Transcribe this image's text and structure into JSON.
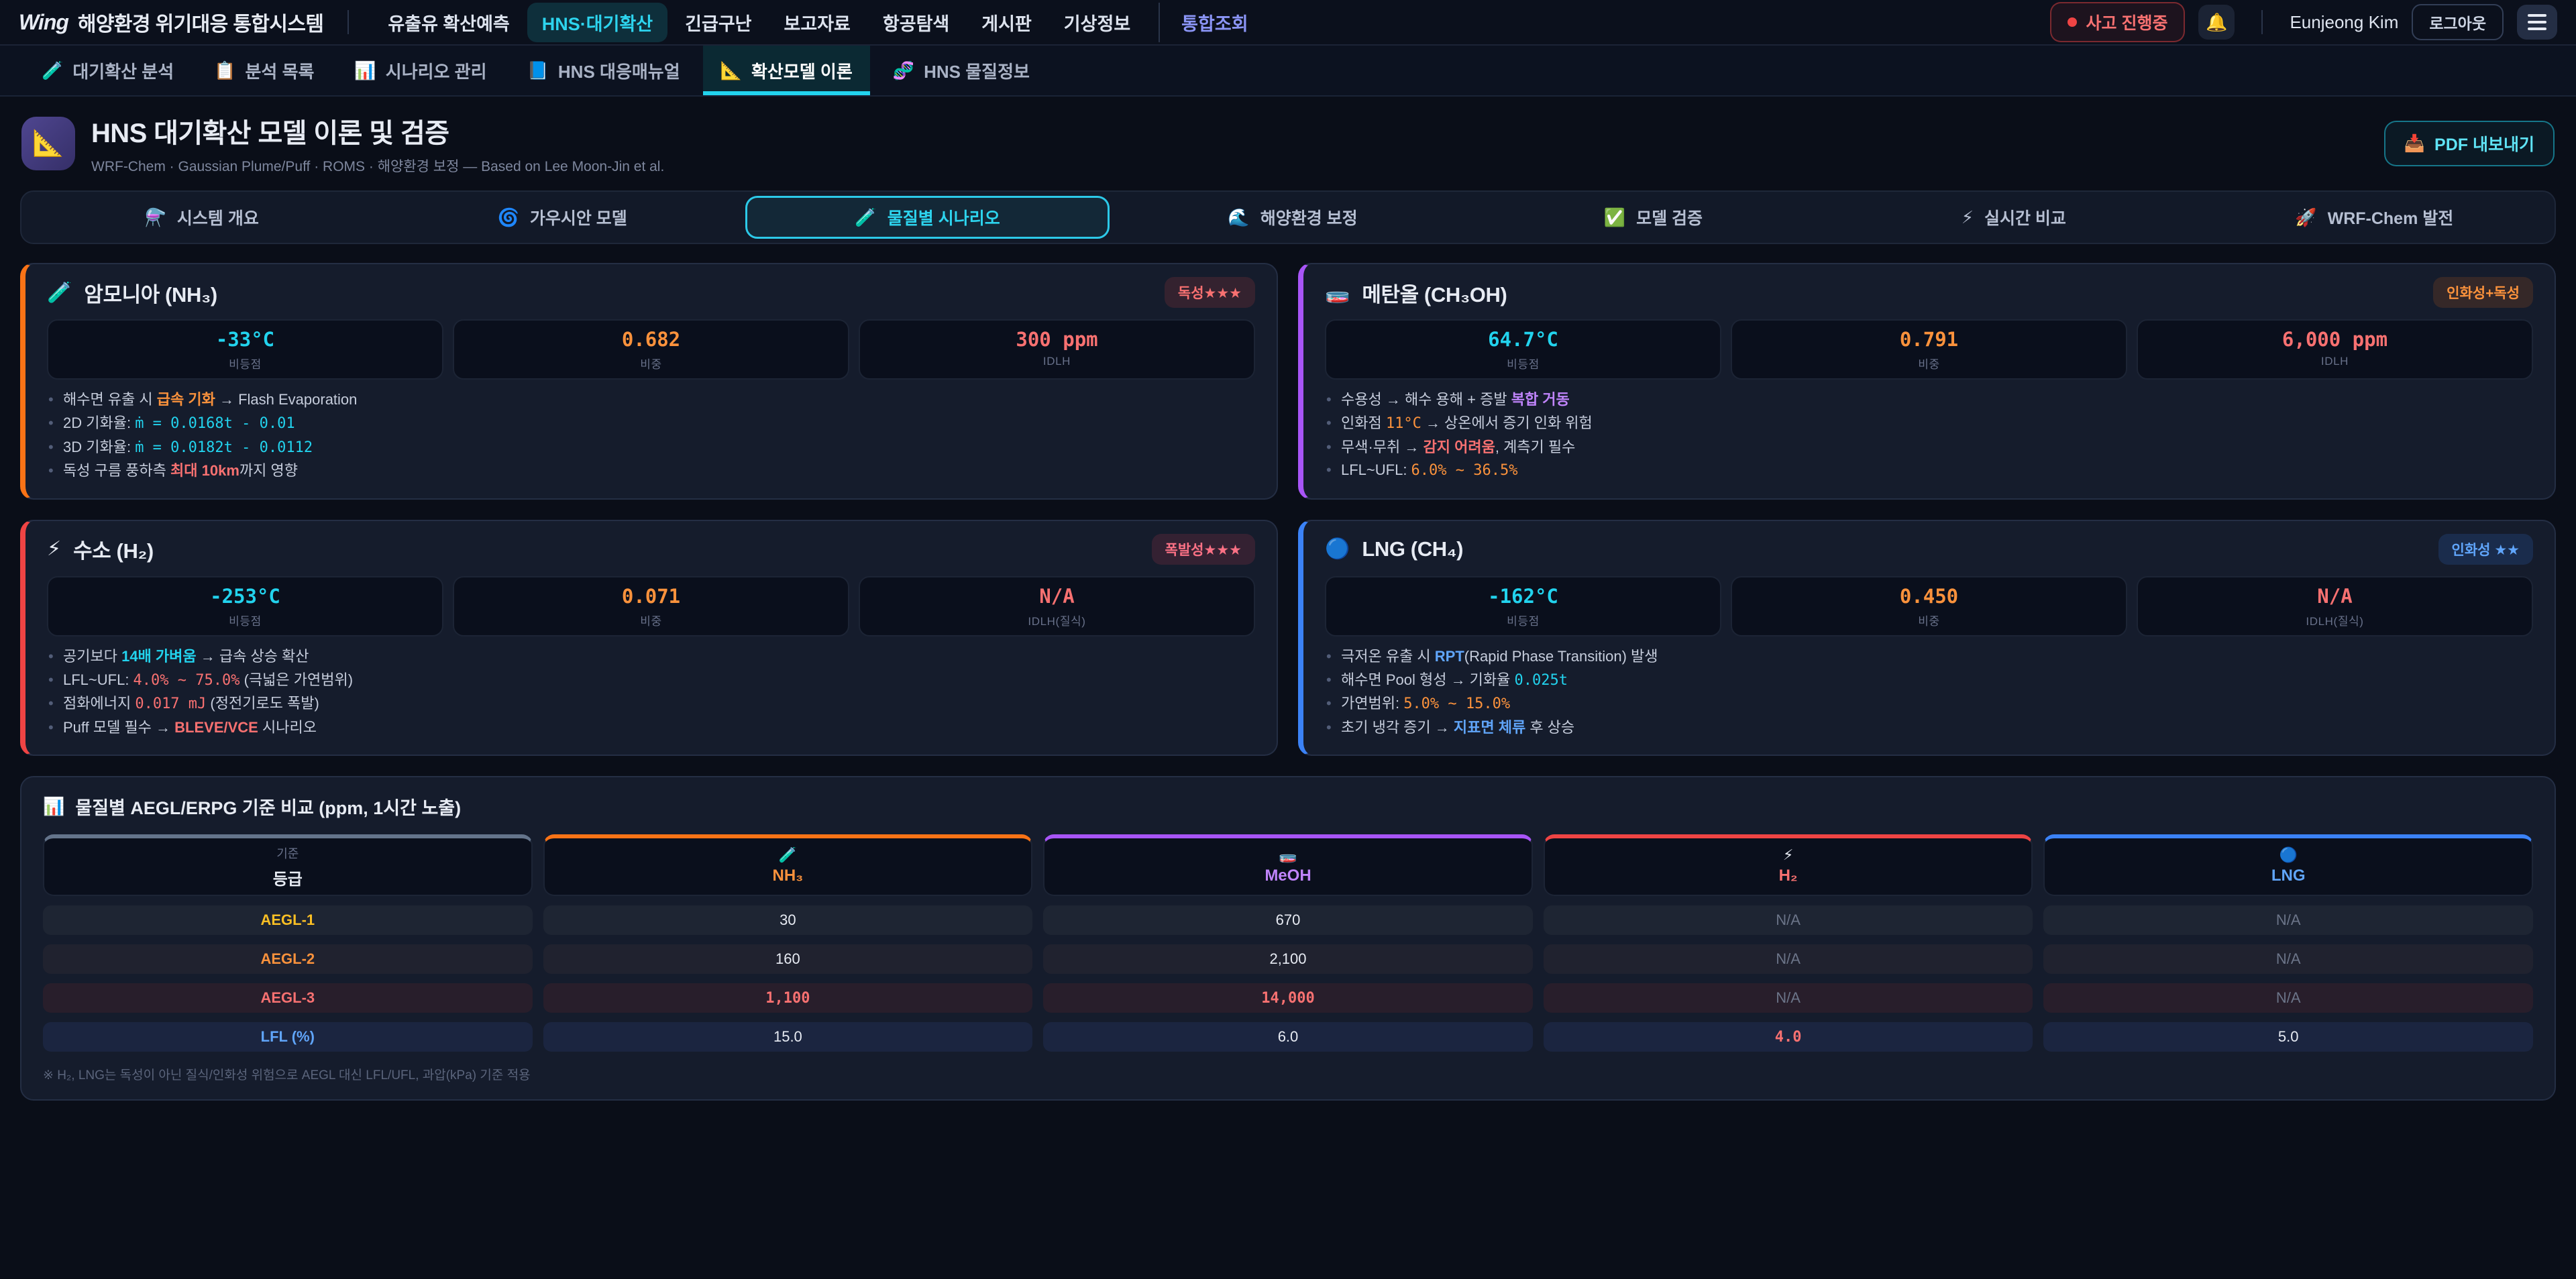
{
  "topnav": {
    "logo": "Wing",
    "brand": "해양환경 위기대응 통합시스템",
    "items": [
      {
        "label": "유출유 확산예측"
      },
      {
        "label": "HNS·대기확산"
      },
      {
        "label": "긴급구난"
      },
      {
        "label": "보고자료"
      },
      {
        "label": "항공탐색"
      },
      {
        "label": "게시판"
      },
      {
        "label": "기상정보"
      },
      {
        "label": "통합조회"
      }
    ],
    "incident_badge": "사고 진행중",
    "bell_icon": "🔔",
    "user_name": "Eunjeong Kim",
    "logout_label": "로그아웃"
  },
  "subnav": {
    "items": [
      {
        "icon": "🧪",
        "label": "대기확산 분석"
      },
      {
        "icon": "📋",
        "label": "분석 목록"
      },
      {
        "icon": "📊",
        "label": "시나리오 관리"
      },
      {
        "icon": "📘",
        "label": "HNS 대응매뉴얼"
      },
      {
        "icon": "📐",
        "label": "확산모델 이론"
      },
      {
        "icon": "🧬",
        "label": "HNS 물질정보"
      }
    ]
  },
  "page_header": {
    "icon": "📐",
    "title": "HNS 대기확산 모델 이론 및 검증",
    "subtitle": "WRF-Chem · Gaussian Plume/Puff · ROMS · 해양환경 보정 — Based on Lee Moon-Jin et al.",
    "export_icon": "📥",
    "export_label": "PDF 내보내기"
  },
  "section_tabs": {
    "items": [
      {
        "icon": "⚗️",
        "label": "시스템 개요"
      },
      {
        "icon": "🌀",
        "label": "가우시안 모델"
      },
      {
        "icon": "🧪",
        "label": "물질별 시나리오"
      },
      {
        "icon": "🌊",
        "label": "해양환경 보정"
      },
      {
        "icon": "✅",
        "label": "모델 검증"
      },
      {
        "icon": "⚡",
        "label": "실시간 비교"
      },
      {
        "icon": "🚀",
        "label": "WRF-Chem 발전"
      }
    ]
  },
  "cards": [
    {
      "icon": "🧪",
      "name": "암모니아 (NH₃)",
      "badge": "독성★★★",
      "stats": [
        {
          "value": "-33°C",
          "label": "비등점"
        },
        {
          "value": "0.682",
          "label": "비중"
        },
        {
          "value": "300 ppm",
          "label": "IDLH"
        }
      ],
      "bullets": [
        [
          {
            "t": "해수면 유출 시 "
          },
          {
            "t": "급속 기화",
            "c": "orange"
          },
          {
            "t": " → Flash Evaporation"
          }
        ],
        [
          {
            "t": "2D 기화율: "
          },
          {
            "t": "ṁ = 0.0168t - 0.01",
            "c": "mcyan"
          }
        ],
        [
          {
            "t": "3D 기화율: "
          },
          {
            "t": "ṁ = 0.0182t - 0.0112",
            "c": "mcyan"
          }
        ],
        [
          {
            "t": "독성 구름 풍하측 "
          },
          {
            "t": "최대 10km",
            "c": "red"
          },
          {
            "t": "까지 영향"
          }
        ]
      ]
    },
    {
      "icon": "🧫",
      "name": "메탄올 (CH₃OH)",
      "badge": "인화성+독성",
      "stats": [
        {
          "value": "64.7°C",
          "label": "비등점"
        },
        {
          "value": "0.791",
          "label": "비중"
        },
        {
          "value": "6,000 ppm",
          "label": "IDLH"
        }
      ],
      "bullets": [
        [
          {
            "t": "수용성 → 해수 용해 + 증발 "
          },
          {
            "t": "복합 거동",
            "c": "purple"
          }
        ],
        [
          {
            "t": "인화점 "
          },
          {
            "t": "11°C",
            "c": "morange"
          },
          {
            "t": " → 상온에서 증기 인화 위험"
          }
        ],
        [
          {
            "t": "무색·무취 → "
          },
          {
            "t": "감지 어려움",
            "c": "red"
          },
          {
            "t": ", 계측기 필수"
          }
        ],
        [
          {
            "t": "LFL~UFL: "
          },
          {
            "t": "6.0% ~ 36.5%",
            "c": "morange"
          }
        ]
      ]
    },
    {
      "icon": "⚡",
      "name": "수소 (H₂)",
      "badge": "폭발성★★★",
      "stats": [
        {
          "value": "-253°C",
          "label": "비등점"
        },
        {
          "value": "0.071",
          "label": "비중"
        },
        {
          "value": "N/A",
          "label": "IDLH(질식)"
        }
      ],
      "bullets": [
        [
          {
            "t": "공기보다 "
          },
          {
            "t": "14배 가벼움",
            "c": "cyan"
          },
          {
            "t": " → 급속 상승 확산"
          }
        ],
        [
          {
            "t": "LFL~UFL: "
          },
          {
            "t": "4.0% ~ 75.0%",
            "c": "mred"
          },
          {
            "t": " (극넓은 가연범위)"
          }
        ],
        [
          {
            "t": "점화에너지 "
          },
          {
            "t": "0.017 mJ",
            "c": "mred"
          },
          {
            "t": " (정전기로도 폭발)"
          }
        ],
        [
          {
            "t": "Puff 모델 필수 → "
          },
          {
            "t": "BLEVE/VCE",
            "c": "red"
          },
          {
            "t": " 시나리오"
          }
        ]
      ]
    },
    {
      "icon": "🔵",
      "name": "LNG (CH₄)",
      "badge": "인화성 ★★",
      "stats": [
        {
          "value": "-162°C",
          "label": "비등점"
        },
        {
          "value": "0.450",
          "label": "비중"
        },
        {
          "value": "N/A",
          "label": "IDLH(질식)"
        }
      ],
      "bullets": [
        [
          {
            "t": "극저온 유출 시 "
          },
          {
            "t": "RPT",
            "c": "blue"
          },
          {
            "t": "(Rapid Phase Transition) 발생"
          }
        ],
        [
          {
            "t": "해수면 Pool 형성 → 기화율 "
          },
          {
            "t": "0.025t",
            "c": "mcyan"
          }
        ],
        [
          {
            "t": "가연범위: "
          },
          {
            "t": "5.0% ~ 15.0%",
            "c": "morange"
          }
        ],
        [
          {
            "t": "초기 냉각 증기 → "
          },
          {
            "t": "지표면 체류",
            "c": "blue"
          },
          {
            "t": " 후 상승"
          }
        ]
      ]
    }
  ],
  "aegl_table": {
    "title_icon": "📊",
    "title": "물질별 AEGL/ERPG 기준 비교 (ppm, 1시간 노출)",
    "columns": [
      {
        "top": "기준",
        "label": "등급"
      },
      {
        "icon": "🧪",
        "label": "NH₃"
      },
      {
        "icon": "🧫",
        "label": "MeOH"
      },
      {
        "icon": "⚡",
        "label": "H₂"
      },
      {
        "icon": "🔵",
        "label": "LNG"
      }
    ],
    "rows": [
      {
        "label": "AEGL-1",
        "values": [
          "30",
          "670",
          "N/A",
          "N/A"
        ]
      },
      {
        "label": "AEGL-2",
        "values": [
          "160",
          "2,100",
          "N/A",
          "N/A"
        ]
      },
      {
        "label": "AEGL-3",
        "values": [
          "1,100",
          "14,000",
          "N/A",
          "N/A"
        ]
      },
      {
        "label": "LFL (%)",
        "values": [
          "15.0",
          "6.0",
          "4.0",
          "5.0"
        ]
      }
    ],
    "note": "※ H₂, LNG는 독성이 아닌 질식/인화성 위험으로 AEGL 대신 LFL/UFL, 과압(kPa) 기준 적용"
  },
  "colors": {
    "accent_cyan": "#22d3ee",
    "accent_orange": "#f97316",
    "accent_purple": "#a855f7",
    "accent_red": "#ef4444",
    "accent_blue": "#3b82f6",
    "status_red": "#f87171",
    "page_bg": "#0a0e18",
    "card_bg": "#151c2c"
  }
}
